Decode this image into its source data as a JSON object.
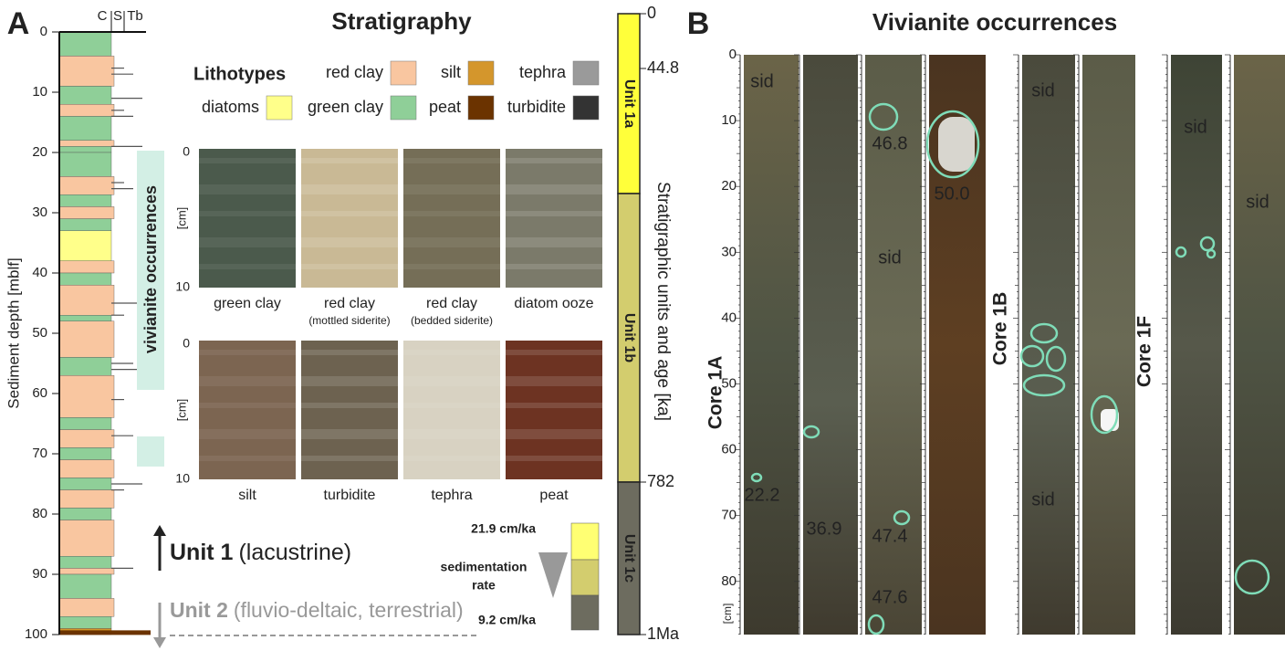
{
  "panel_a": {
    "label": "A",
    "title": "Stratigraphy",
    "column_header": [
      "C",
      "S",
      "Tb"
    ],
    "depth_axis": {
      "label": "Sediment depth [mblf]",
      "ticks": [
        0,
        10,
        20,
        30,
        40,
        50,
        60,
        70,
        80,
        90,
        100
      ]
    },
    "vivianite_label": "vivianite occurrences",
    "lithotypes": {
      "title": "Lithotypes",
      "items": [
        {
          "name": "red clay",
          "color": "#f9c6a0"
        },
        {
          "name": "silt",
          "color": "#d4962c"
        },
        {
          "name": "tephra",
          "color": "#9a9a9a"
        },
        {
          "name": "diatoms",
          "color": "#ffff8a"
        },
        {
          "name": "green clay",
          "color": "#8fcf98"
        },
        {
          "name": "peat",
          "color": "#6b3300"
        },
        {
          "name": "turbidite",
          "color": "#333333"
        }
      ]
    },
    "photos_top": {
      "unit": "[cm]",
      "ticks": [
        0,
        10
      ],
      "items": [
        {
          "label": "green clay"
        },
        {
          "label": "red clay",
          "note": "(mottled siderite)"
        },
        {
          "label": "red clay",
          "note": "(bedded siderite)"
        },
        {
          "label": "diatom ooze"
        }
      ]
    },
    "photos_bottom": {
      "unit": "[cm]",
      "ticks": [
        0,
        10
      ],
      "items": [
        {
          "label": "silt"
        },
        {
          "label": "turbidite"
        },
        {
          "label": "tephra"
        },
        {
          "label": "peat"
        }
      ]
    },
    "unit1": {
      "name": "Unit 1",
      "desc": "(lacustrine)"
    },
    "unit2": {
      "name": "Unit 2",
      "desc": "(fluvio-deltaic, terrestrial)"
    },
    "sedimentation": {
      "label_line1": "sedimentation",
      "label_line2": "rate",
      "max": "21.9 cm/ka",
      "min": "9.2 cm/ka"
    },
    "units_bar": {
      "label": "Stratigraphic units and age [ka]",
      "ages": [
        0,
        44.8,
        782,
        "1Ma"
      ],
      "units": [
        "Unit 1a",
        "Unit 1b",
        "Unit 1c"
      ]
    }
  },
  "panel_b": {
    "label": "B",
    "title": "Vivianite occurrences",
    "depth_ticks": [
      0,
      10,
      20,
      30,
      40,
      50,
      60,
      70,
      80
    ],
    "unit": "[cm]",
    "cores": [
      "Core 1A",
      "Core 1B",
      "Core 1F"
    ],
    "annotations": [
      "sid",
      "sid",
      "sid",
      "sid",
      "sid",
      "sid",
      "22.2",
      "36.9",
      "46.8",
      "47.4",
      "47.6",
      "50.0"
    ]
  }
}
